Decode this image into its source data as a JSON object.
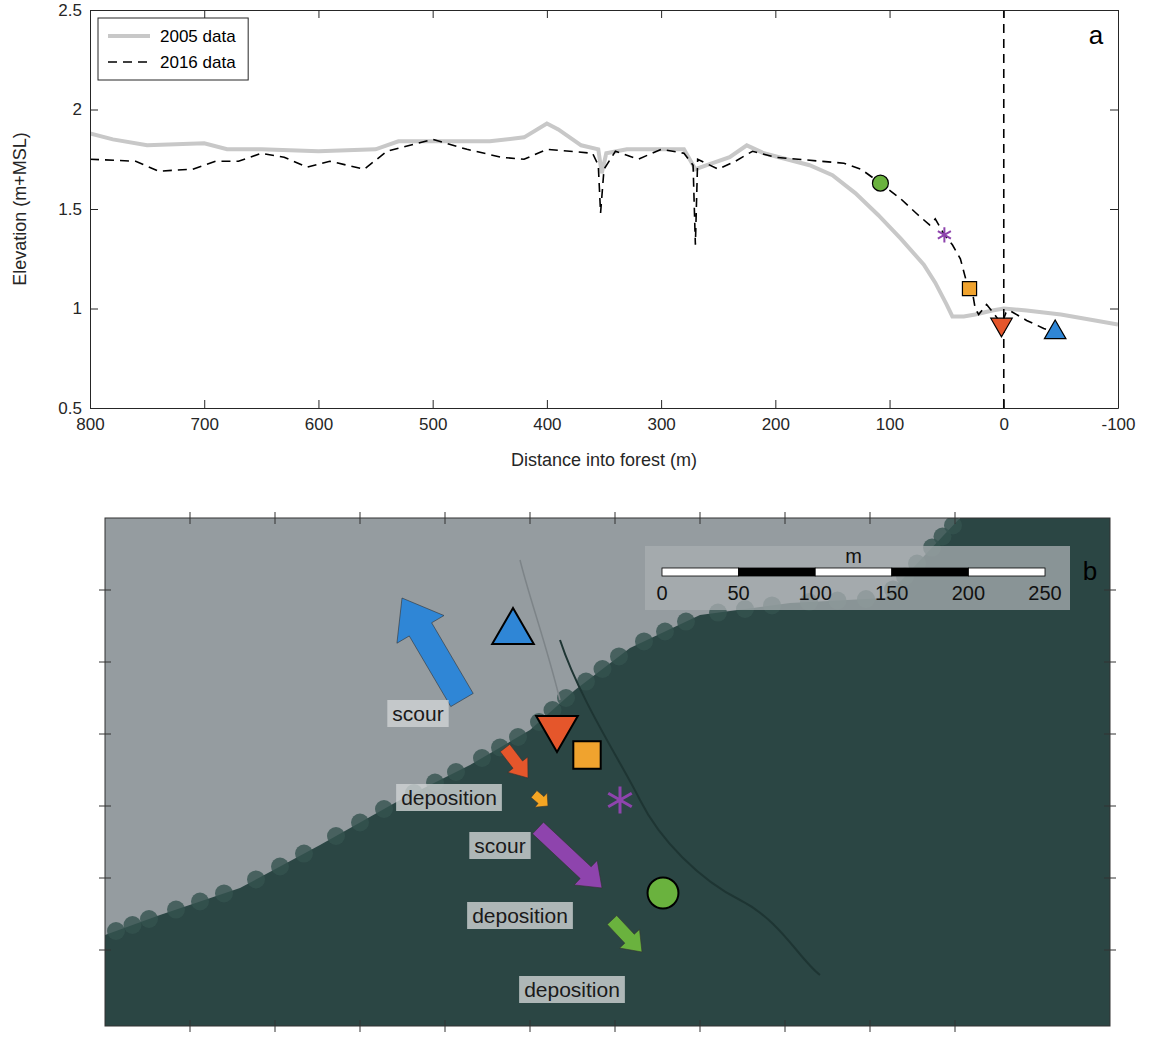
{
  "chart_data": {
    "type": "line",
    "panel_label": "a",
    "x_label": "Distance into forest (m)",
    "y_label": "Elevation (m+MSL)",
    "xlim": [
      800,
      -100
    ],
    "xticks": [
      800,
      700,
      600,
      500,
      400,
      300,
      200,
      100,
      0,
      -100
    ],
    "ylim": [
      0.5,
      2.5
    ],
    "yticks": [
      0.5,
      1,
      1.5,
      2,
      2.5
    ],
    "legend": "upper left",
    "series": [
      {
        "name": "2005 data",
        "color": "#c8c8c8",
        "line_style": "solid",
        "x": [
          800,
          780,
          750,
          700,
          680,
          650,
          600,
          550,
          530,
          500,
          450,
          420,
          400,
          390,
          370,
          355,
          352,
          348,
          330,
          300,
          280,
          270,
          260,
          240,
          225,
          210,
          190,
          170,
          150,
          130,
          110,
          90,
          70,
          60,
          50,
          45,
          35,
          25,
          10,
          0,
          -20,
          -50,
          -80,
          -100
        ],
        "values": [
          1.88,
          1.85,
          1.82,
          1.83,
          1.8,
          1.8,
          1.79,
          1.8,
          1.84,
          1.84,
          1.84,
          1.86,
          1.93,
          1.9,
          1.82,
          1.8,
          1.68,
          1.78,
          1.8,
          1.8,
          1.8,
          1.7,
          1.72,
          1.76,
          1.82,
          1.78,
          1.75,
          1.72,
          1.67,
          1.58,
          1.47,
          1.35,
          1.22,
          1.13,
          1.02,
          0.96,
          0.96,
          0.97,
          0.99,
          1.0,
          0.99,
          0.97,
          0.94,
          0.92
        ]
      },
      {
        "name": "2016 data",
        "color": "#000000",
        "line_style": "dashed",
        "x": [
          800,
          760,
          740,
          710,
          690,
          670,
          650,
          630,
          610,
          590,
          560,
          540,
          500,
          470,
          440,
          420,
          400,
          380,
          360,
          355,
          353,
          350,
          340,
          320,
          300,
          280,
          272,
          270,
          268,
          250,
          235,
          220,
          200,
          180,
          160,
          140,
          125,
          108,
          90,
          75,
          65,
          60,
          52,
          45,
          38,
          32,
          28,
          25,
          22,
          15,
          8,
          2,
          -2,
          -5,
          -20,
          -35,
          -45
        ],
        "values": [
          1.75,
          1.74,
          1.69,
          1.7,
          1.74,
          1.74,
          1.78,
          1.76,
          1.71,
          1.74,
          1.7,
          1.79,
          1.85,
          1.8,
          1.76,
          1.75,
          1.8,
          1.79,
          1.78,
          1.72,
          1.48,
          1.7,
          1.79,
          1.75,
          1.8,
          1.78,
          1.72,
          1.32,
          1.75,
          1.7,
          1.74,
          1.79,
          1.76,
          1.75,
          1.74,
          1.73,
          1.7,
          1.63,
          1.55,
          1.47,
          1.42,
          1.45,
          1.37,
          1.32,
          1.25,
          1.12,
          1.1,
          1.0,
          0.97,
          1.02,
          0.97,
          0.92,
          0.98,
          0.99,
          0.94,
          0.9,
          0.88
        ]
      },
      {
        "type": "line",
        "color": "#000000",
        "line_style": "dashed",
        "x": [
          0,
          0
        ],
        "values": [
          0.5,
          2.5
        ]
      },
      {
        "type": "scatter",
        "color": "#6ab23e",
        "marker": "circle",
        "x": [
          108
        ],
        "values": [
          1.63
        ]
      },
      {
        "type": "scatter",
        "color": "#8e44ad",
        "marker": "asterisk",
        "x": [
          52
        ],
        "values": [
          1.37
        ]
      },
      {
        "type": "scatter",
        "color": "#f0a32e",
        "marker": "square",
        "x": [
          30
        ],
        "values": [
          1.1
        ]
      },
      {
        "type": "scatter",
        "color": "#e5562b",
        "marker": "triangle-down",
        "x": [
          2
        ],
        "values": [
          0.92
        ]
      },
      {
        "type": "scatter",
        "color": "#2f86d6",
        "marker": "triangle-up",
        "x": [
          -45
        ],
        "values": [
          0.88
        ]
      }
    ]
  },
  "panel_b": {
    "label": "b",
    "scale_bar": {
      "unit": "m",
      "ticks": [
        0,
        50,
        100,
        150,
        200,
        250
      ]
    },
    "annotations": [
      {
        "text": "scour",
        "color": "#2f86d6"
      },
      {
        "text": "deposition",
        "color": "#e5562b"
      },
      {
        "text": "scour",
        "color": "#f5a623"
      },
      {
        "text": "deposition",
        "color": "#8e44ad"
      },
      {
        "text": "deposition",
        "color": "#6ab23e"
      }
    ]
  }
}
